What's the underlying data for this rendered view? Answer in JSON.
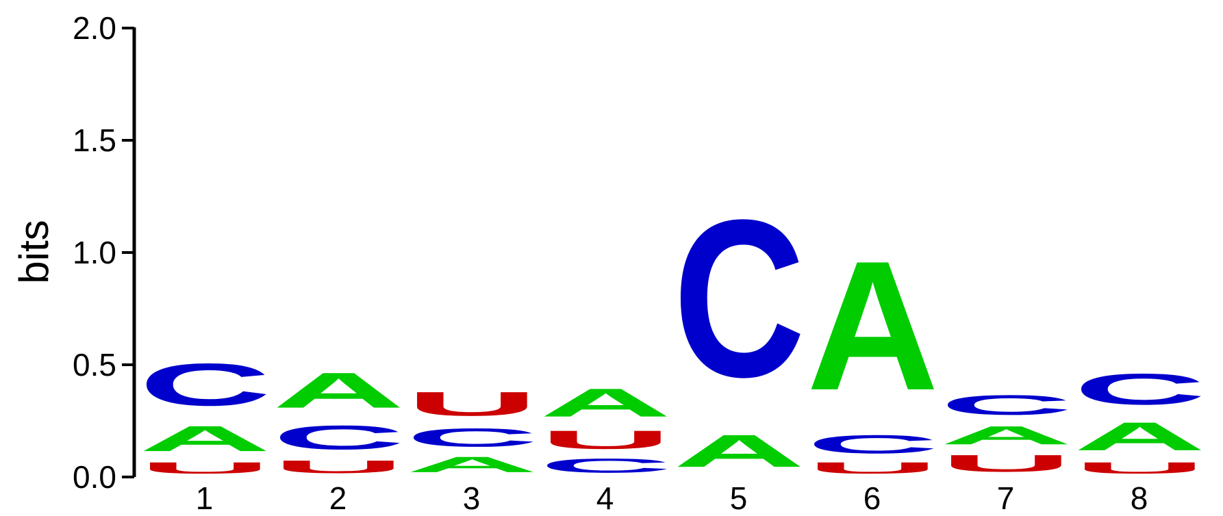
{
  "chart_data": {
    "type": "sequence-logo",
    "ylabel": "bits",
    "ylim": [
      0,
      2
    ],
    "y_ticks": [
      "0.0",
      "0.5",
      "1.0",
      "1.5",
      "2.0"
    ],
    "y_tick_values": [
      0,
      0.5,
      1.0,
      1.5,
      2.0
    ],
    "positions": [
      "1",
      "2",
      "3",
      "4",
      "5",
      "6",
      "7",
      "8"
    ],
    "colors": {
      "A": "#00cc00",
      "C": "#0000cc",
      "U": "#cc0000",
      "G": "#ffb300"
    },
    "stacks": [
      [
        {
          "letter": "U",
          "height": 0.08
        },
        {
          "letter": "A",
          "height": 0.18
        },
        {
          "letter": "C",
          "height": 0.3
        }
      ],
      [
        {
          "letter": "U",
          "height": 0.09
        },
        {
          "letter": "C",
          "height": 0.17
        },
        {
          "letter": "A",
          "height": 0.25
        }
      ],
      [
        {
          "letter": "A",
          "height": 0.11
        },
        {
          "letter": "C",
          "height": 0.13
        },
        {
          "letter": "U",
          "height": 0.17
        }
      ],
      [
        {
          "letter": "C",
          "height": 0.1
        },
        {
          "letter": "U",
          "height": 0.13
        },
        {
          "letter": "A",
          "height": 0.2
        }
      ],
      [
        {
          "letter": "A",
          "height": 0.23
        },
        {
          "letter": "C",
          "height": 1.12
        }
      ],
      [
        {
          "letter": "U",
          "height": 0.08
        },
        {
          "letter": "C",
          "height": 0.13
        },
        {
          "letter": "A",
          "height": 0.92
        }
      ],
      [
        {
          "letter": "U",
          "height": 0.12
        },
        {
          "letter": "A",
          "height": 0.13
        },
        {
          "letter": "C",
          "height": 0.14
        }
      ],
      [
        {
          "letter": "U",
          "height": 0.08
        },
        {
          "letter": "A",
          "height": 0.2
        },
        {
          "letter": "C",
          "height": 0.22
        }
      ]
    ]
  }
}
